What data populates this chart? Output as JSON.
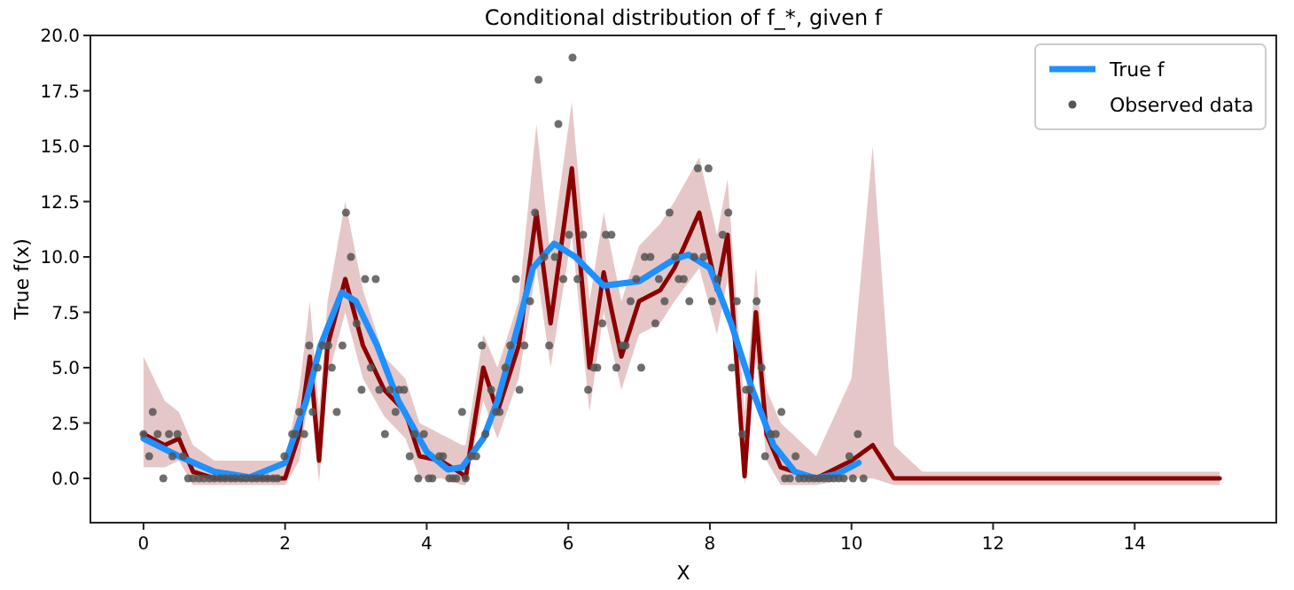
{
  "chart_data": {
    "type": "line",
    "title": "Conditional distribution of f_*, given f",
    "xlabel": "X",
    "ylabel": "True f(x)",
    "xlim": [
      -0.75,
      16
    ],
    "ylim": [
      -2,
      20
    ],
    "xticks": [
      0,
      2,
      4,
      6,
      8,
      10,
      12,
      14
    ],
    "yticks": [
      {
        "value": 0,
        "label": "0.0"
      },
      {
        "value": 2.5,
        "label": "2.5"
      },
      {
        "value": 5,
        "label": "5.0"
      },
      {
        "value": 7.5,
        "label": "7.5"
      },
      {
        "value": 10,
        "label": "10.0"
      },
      {
        "value": 12.5,
        "label": "12.5"
      },
      {
        "value": 15,
        "label": "15.0"
      },
      {
        "value": 17.5,
        "label": "17.5"
      },
      {
        "value": 20,
        "label": "20.0"
      }
    ],
    "grid": false,
    "legend": "top right",
    "series": [
      {
        "color": "#8b0000",
        "line_style": "solid",
        "x": [
          0,
          0.3,
          0.5,
          0.7,
          1,
          2,
          2.2,
          2.35,
          2.48,
          2.6,
          2.85,
          3.1,
          3.4,
          3.7,
          3.9,
          4.2,
          4.5,
          4.55,
          4.8,
          5,
          5.3,
          5.55,
          5.75,
          6.05,
          6.3,
          6.5,
          6.75,
          7,
          7.3,
          7.5,
          7.85,
          8.1,
          8.25,
          8.49,
          8.65,
          8.8,
          9,
          9.5,
          10,
          10.3,
          10.6,
          11,
          15.2
        ],
        "values": [
          2,
          1.5,
          1.8,
          0.3,
          0,
          0,
          2,
          5.5,
          0.8,
          6,
          9,
          6,
          4,
          3,
          1,
          0.8,
          0.2,
          0,
          5,
          3,
          6,
          12,
          7,
          14,
          5,
          9.3,
          5.5,
          8,
          8.5,
          9.5,
          12,
          8.5,
          11,
          0.1,
          7.5,
          2,
          0.5,
          0,
          0.8,
          1.5,
          0,
          0,
          0
        ],
        "lower": [
          0.5,
          0.5,
          0.8,
          -0.3,
          -0.3,
          -0.3,
          0.8,
          4,
          -0.2,
          4.5,
          7.5,
          4.5,
          2.8,
          1.8,
          0,
          0,
          -0.3,
          -0.3,
          3.5,
          1.8,
          4.5,
          9.5,
          5,
          11,
          3,
          7.5,
          4,
          6.5,
          7,
          8,
          9.5,
          6.5,
          9,
          -0.3,
          5.5,
          0.8,
          -0.3,
          -0.3,
          0,
          0,
          -0.3,
          -0.3,
          -0.3
        ],
        "upper": [
          5.5,
          3.5,
          3,
          1.5,
          0.8,
          0.8,
          4,
          8,
          3,
          8,
          12.5,
          8.5,
          5.5,
          4.5,
          2.5,
          2,
          1.5,
          1.5,
          6.5,
          5,
          8,
          16,
          10,
          17,
          8,
          12,
          8,
          10.5,
          11.5,
          12.5,
          14.5,
          11,
          13.5,
          3,
          9.5,
          4,
          2.5,
          1,
          4.5,
          15,
          1.5,
          0.3,
          0.3
        ]
      },
      {
        "name": "True f",
        "color": "#1e90ff",
        "line_style": "solid",
        "x": [
          0,
          0.5,
          1,
          1.5,
          2,
          2.3,
          2.5,
          2.8,
          3,
          3.3,
          3.6,
          4,
          4.3,
          4.5,
          4.8,
          5,
          5.3,
          5.5,
          5.8,
          6.1,
          6.5,
          7,
          7.5,
          7.7,
          8,
          8.3,
          8.6,
          8.9,
          9.2,
          9.5,
          9.8,
          10.1
        ],
        "values": [
          1.8,
          1,
          0.3,
          0.05,
          0.7,
          3.5,
          6,
          8.4,
          8,
          6,
          3.5,
          1.2,
          0.4,
          0.5,
          1.8,
          3.5,
          7,
          9.5,
          10.6,
          10,
          8.7,
          8.9,
          9.9,
          10.1,
          9.5,
          7,
          4,
          1.5,
          0.3,
          0,
          0.2,
          0.7
        ]
      },
      {
        "type": "scatter",
        "name": "Observed data",
        "color": "#555555",
        "marker": "circle",
        "x": [
          0,
          0.08,
          0.13,
          0.2,
          0.28,
          0.36,
          0.41,
          0.48,
          0.56,
          0.63,
          0.7,
          0.78,
          0.85,
          0.93,
          1,
          1.08,
          1.15,
          1.23,
          1.3,
          1.38,
          1.45,
          1.53,
          1.6,
          1.68,
          1.75,
          1.83,
          1.89,
          1.99,
          2.1,
          2.15,
          2.2,
          2.27,
          2.34,
          2.39,
          2.46,
          2.53,
          2.61,
          2.66,
          2.73,
          2.81,
          2.86,
          2.93,
          3.01,
          3.08,
          3.13,
          3.21,
          3.28,
          3.33,
          3.41,
          3.48,
          3.56,
          3.61,
          3.68,
          3.76,
          3.83,
          3.88,
          3.96,
          4.03,
          4.08,
          4.18,
          4.23,
          4.32,
          4.37,
          4.42,
          4.5,
          4.55,
          4.63,
          4.7,
          4.78,
          4.83,
          4.91,
          4.98,
          5.03,
          5.11,
          5.18,
          5.26,
          5.31,
          5.38,
          5.46,
          5.53,
          5.58,
          5.66,
          5.73,
          5.81,
          5.86,
          5.93,
          6.01,
          6.06,
          6.13,
          6.21,
          6.28,
          6.36,
          6.41,
          6.48,
          6.53,
          6.61,
          6.68,
          6.76,
          6.81,
          6.88,
          6.96,
          7.03,
          7.08,
          7.16,
          7.23,
          7.28,
          7.36,
          7.43,
          7.51,
          7.56,
          7.63,
          7.71,
          7.78,
          7.83,
          7.91,
          7.98,
          8.03,
          8.11,
          8.18,
          8.26,
          8.31,
          8.38,
          8.46,
          8.51,
          8.56,
          8.66,
          8.73,
          8.78,
          8.86,
          8.93,
          9.01,
          9.06,
          9.13,
          9.21,
          9.26,
          9.33,
          9.4,
          9.47,
          9.54,
          9.61,
          9.68,
          9.75,
          9.82,
          9.89,
          9.97,
          10.02,
          10.09,
          10.17
        ],
        "values": [
          2,
          1,
          3,
          2,
          0,
          2,
          1,
          2,
          1,
          0,
          0,
          0,
          0,
          0,
          0,
          0,
          0,
          0,
          0,
          0,
          0,
          0,
          0,
          0,
          0,
          0,
          0,
          1,
          2,
          2,
          3,
          2,
          6,
          3,
          5,
          6,
          6,
          5,
          3,
          6,
          12,
          10,
          7,
          4,
          9,
          5,
          9,
          4,
          2,
          4,
          3,
          4,
          4,
          1,
          2,
          0,
          2,
          0,
          0,
          1,
          1,
          0,
          0,
          0,
          3,
          0,
          1,
          1,
          6,
          2,
          4,
          3,
          3,
          5,
          6,
          9,
          4,
          6,
          8,
          12,
          18,
          10,
          6,
          10,
          16,
          9,
          11,
          19,
          9,
          11,
          4,
          5,
          5,
          7,
          11,
          11,
          5,
          6,
          6,
          8,
          9,
          5,
          10,
          10,
          7,
          9,
          8,
          12,
          10,
          9,
          9,
          8,
          10,
          14,
          10,
          14,
          8,
          9,
          11,
          12,
          5,
          8,
          2,
          4,
          4,
          8,
          5,
          1,
          2,
          2,
          3,
          0,
          0,
          1,
          0,
          0,
          0,
          0,
          0,
          0,
          0,
          0,
          0,
          0,
          1,
          0,
          2,
          0
        ]
      }
    ]
  }
}
